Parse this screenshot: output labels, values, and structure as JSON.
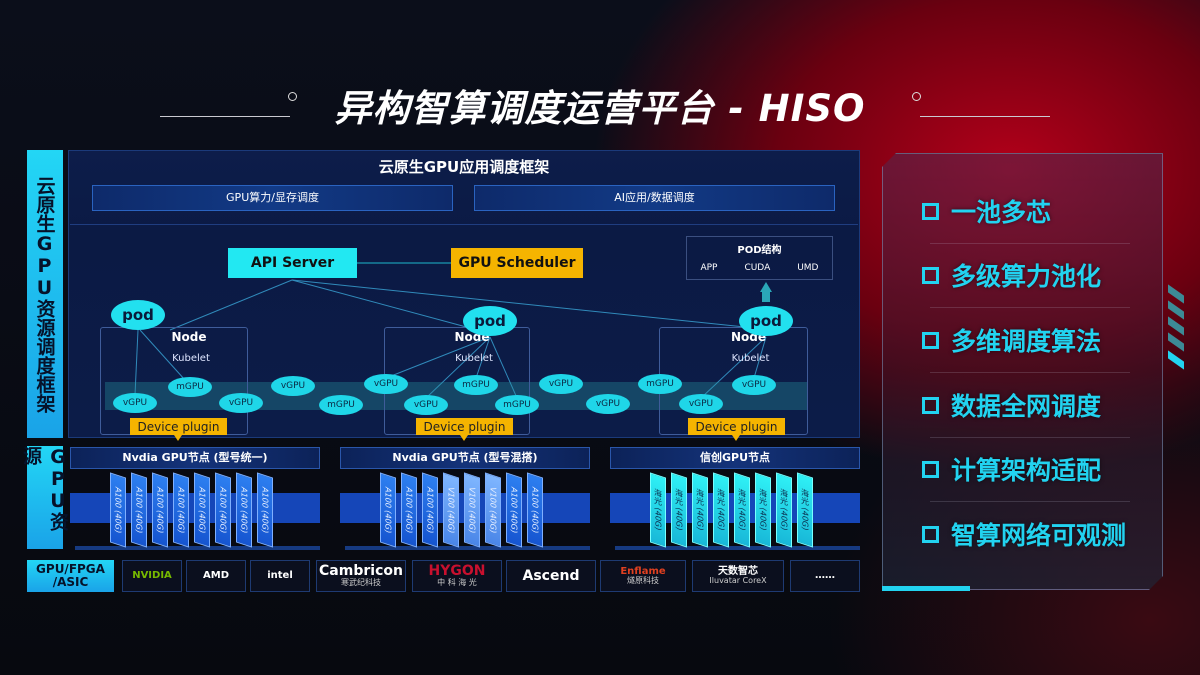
{
  "title": "异构智算调度运营平台 - HISO",
  "side_labels": {
    "framework": "云原生GPU资源调度框架",
    "resources": "GPU资源",
    "chips": "GPU/FPGA /ASIC"
  },
  "framework": {
    "heading": "云原生GPU应用调度框架",
    "bars": [
      "GPU算力/显存调度",
      "AI应用/数据调度"
    ],
    "api_server": "API Server",
    "gpu_scheduler": "GPU Scheduler",
    "pod_structure": {
      "title": "POD结构",
      "items": [
        "APP",
        "CUDA",
        "UMD"
      ]
    },
    "node_label": "Node",
    "kubelet_label": "Kubelet",
    "pod_label": "pod",
    "device_plugin": "Device plugin",
    "virtual_gpus": [
      "vGPU",
      "mGPU",
      "vGPU",
      "vGPU",
      "mGPU",
      "vGPU",
      "vGPU",
      "mGPU",
      "mGPU",
      "vGPU",
      "vGPU",
      "mGPU",
      "vGPU",
      "vGPU"
    ],
    "colors": {
      "cyan": "#22e0ef",
      "orange": "#f5b400"
    }
  },
  "gpu_nodes": [
    {
      "title": "Nvdia GPU节点 (型号统一)",
      "cards": [
        "A100 (40G)",
        "A100 (40G)",
        "A100 (40G)",
        "A100 (40G)",
        "A100 (40G)",
        "A100 (40G)",
        "A100 (40G)",
        "A100 (40G)"
      ]
    },
    {
      "title": "Nvdia GPU节点 (型号混搭)",
      "cards": [
        "A100 (40G)",
        "A100 (40G)",
        "A100 (40G)",
        "V100 (40G)",
        "V100 (40G)",
        "V100 (40G)",
        "A100 (40G)",
        "A100 (40G)"
      ]
    },
    {
      "title": "信创GPU节点",
      "cards": [
        "海光 (40G)",
        "海光 (40G)",
        "海光 (40G)",
        "海光 (40G)",
        "海光 (40G)",
        "海光 (40G)",
        "海光 (40G)",
        "海光 (40G)"
      ]
    }
  ],
  "vendors": [
    {
      "name": "NVIDIA",
      "sub": ""
    },
    {
      "name": "AMD",
      "sub": ""
    },
    {
      "name": "intel",
      "sub": ""
    },
    {
      "name": "Cambricon",
      "sub": "寒武纪科技"
    },
    {
      "name": "HYGON",
      "sub": "中 科 海 光"
    },
    {
      "name": "Ascend",
      "sub": ""
    },
    {
      "name": "Enflame",
      "sub": "燧原科技"
    },
    {
      "name": "天数智芯",
      "sub": "Iluvatar CoreX"
    },
    {
      "name": "……",
      "sub": ""
    }
  ],
  "features": [
    "一池多芯",
    "多级算力池化",
    "多维调度算法",
    "数据全网调度",
    "计算架构适配",
    "智算网络可观测"
  ]
}
